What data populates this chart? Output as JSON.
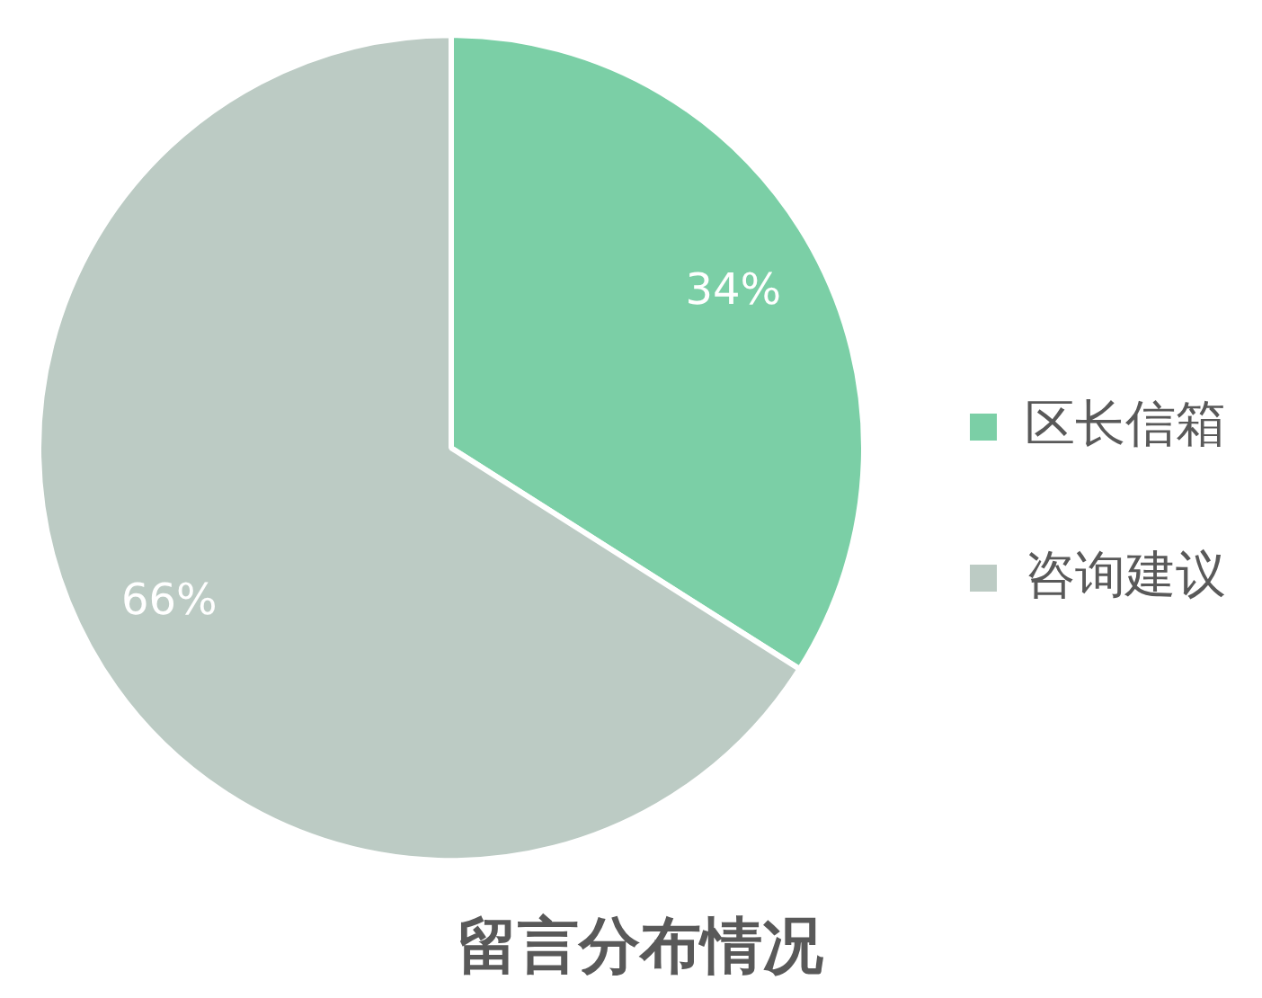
{
  "chart_data": {
    "type": "pie",
    "title": "留言分布情况",
    "categories": [
      "区长信箱",
      "咨询建议"
    ],
    "values": [
      34,
      66
    ],
    "value_labels": [
      "34%",
      "66%"
    ],
    "colors": [
      "#7bcfa6",
      "#bccbc4"
    ],
    "legend": "right"
  }
}
